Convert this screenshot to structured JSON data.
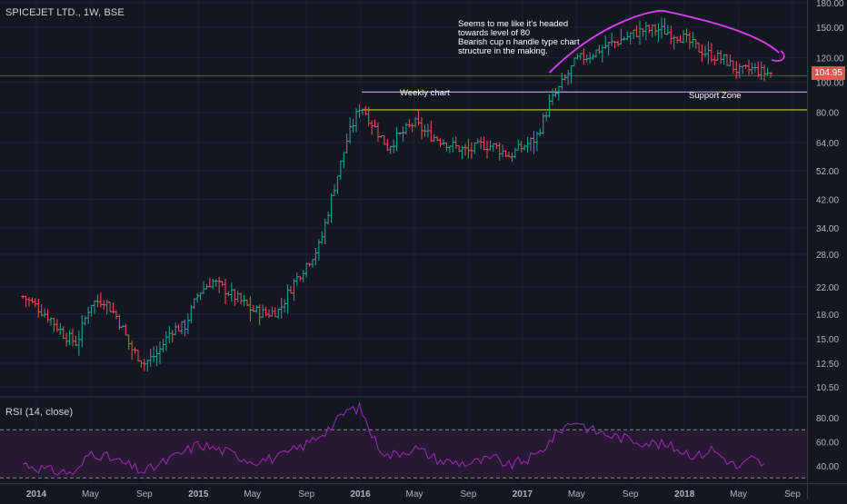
{
  "header": {
    "symbol_title": "SPICEJET LTD., 1W, BSE",
    "rsi_label": "RSI (14, close)"
  },
  "annotations": {
    "cup_note": "Seems to me like it's headed\ntowards level of 80\nBearish cup n handle type chart\nstructure in the making.",
    "weekly_chart": "Weekly chart",
    "support_zone": "Support Zone"
  },
  "last_price": "104.95",
  "colors": {
    "background": "#131722",
    "up": "#26a69a",
    "down": "#ef5350",
    "rsi_line": "#9c27b0",
    "rsi_band": "#2a1a33",
    "support_lines": "#c8c83a",
    "cup_curve": "#e040fb",
    "price_line": "#ef5350"
  },
  "chart_data": [
    {
      "type": "ohlc",
      "title": "SPICEJET LTD., 1W, BSE",
      "scale": "log",
      "ylim": [
        9.5,
        180
      ],
      "y_ticks": [
        "180.00",
        "150.00",
        "120.00",
        "100.00",
        "80.00",
        "64.00",
        "52.00",
        "42.00",
        "34.00",
        "28.00",
        "22.00",
        "18.00",
        "15.00",
        "12.50",
        "10.50"
      ],
      "x_ticks": [
        "2014",
        "May",
        "Sep",
        "2015",
        "May",
        "Sep",
        "2016",
        "May",
        "Sep",
        "2017",
        "May",
        "Sep",
        "2018",
        "May",
        "Sep"
      ],
      "x_range": [
        "2013-11",
        "2018-09"
      ],
      "price_path": [
        [
          "2013-12",
          20.5
        ],
        [
          "2014-01",
          19.0
        ],
        [
          "2014-02",
          17.5
        ],
        [
          "2014-03",
          15.5
        ],
        [
          "2014-04",
          14.5
        ],
        [
          "2014-05",
          19.5
        ],
        [
          "2014-06",
          20.0
        ],
        [
          "2014-07",
          17.5
        ],
        [
          "2014-08",
          14.0
        ],
        [
          "2014-09",
          12.5
        ],
        [
          "2014-10",
          13.5
        ],
        [
          "2014-11",
          16.0
        ],
        [
          "2014-12",
          16.5
        ],
        [
          "2015-01",
          21.0
        ],
        [
          "2015-02",
          23.0
        ],
        [
          "2015-03",
          21.5
        ],
        [
          "2015-04",
          20.0
        ],
        [
          "2015-05",
          18.5
        ],
        [
          "2015-06",
          18.0
        ],
        [
          "2015-07",
          18.5
        ],
        [
          "2015-08",
          22.5
        ],
        [
          "2015-09",
          26.0
        ],
        [
          "2015-10",
          30.0
        ],
        [
          "2015-11",
          45.0
        ],
        [
          "2015-12",
          65.0
        ],
        [
          "2016-01",
          85.0
        ],
        [
          "2016-02",
          72.0
        ],
        [
          "2016-03",
          62.0
        ],
        [
          "2016-04",
          68.0
        ],
        [
          "2016-05",
          74.0
        ],
        [
          "2016-06",
          68.0
        ],
        [
          "2016-07",
          65.0
        ],
        [
          "2016-08",
          62.0
        ],
        [
          "2016-09",
          60.0
        ],
        [
          "2016-10",
          63.0
        ],
        [
          "2016-11",
          62.0
        ],
        [
          "2016-12",
          58.0
        ],
        [
          "2017-01",
          62.0
        ],
        [
          "2017-02",
          66.0
        ],
        [
          "2017-03",
          85.0
        ],
        [
          "2017-04",
          100.0
        ],
        [
          "2017-05",
          118.0
        ],
        [
          "2017-06",
          122.0
        ],
        [
          "2017-07",
          130.0
        ],
        [
          "2017-08",
          135.0
        ],
        [
          "2017-09",
          142.0
        ],
        [
          "2017-10",
          147.0
        ],
        [
          "2017-11",
          148.0
        ],
        [
          "2017-12",
          144.0
        ],
        [
          "2018-01",
          138.0
        ],
        [
          "2018-02",
          128.0
        ],
        [
          "2018-03",
          122.0
        ],
        [
          "2018-04",
          118.0
        ],
        [
          "2018-05",
          108.0
        ],
        [
          "2018-06",
          110.0
        ],
        [
          "2018-07",
          107.0
        ]
      ],
      "last_price": 104.95,
      "support_zone": [
        81.5,
        93.0
      ],
      "annotations": [
        "Weekly chart",
        "Support Zone",
        "Seems to me like it's headed towards level of 80 Bearish cup n handle type chart structure in the making."
      ]
    },
    {
      "type": "line",
      "title": "RSI (14, close)",
      "ylim": [
        28,
        92
      ],
      "y_ticks": [
        "80.00",
        "60.00",
        "40.00"
      ],
      "bands": [
        30,
        70
      ],
      "rsi_path": [
        [
          "2013-12",
          42
        ],
        [
          "2014-02",
          36
        ],
        [
          "2014-04",
          34
        ],
        [
          "2014-05",
          52
        ],
        [
          "2014-07",
          44
        ],
        [
          "2014-09",
          35
        ],
        [
          "2014-11",
          46
        ],
        [
          "2015-01",
          58
        ],
        [
          "2015-03",
          52
        ],
        [
          "2015-05",
          44
        ],
        [
          "2015-07",
          47
        ],
        [
          "2015-09",
          58
        ],
        [
          "2015-11",
          74
        ],
        [
          "2015-12",
          86
        ],
        [
          "2016-01",
          88
        ],
        [
          "2016-02",
          62
        ],
        [
          "2016-03",
          48
        ],
        [
          "2016-05",
          55
        ],
        [
          "2016-07",
          44
        ],
        [
          "2016-09",
          42
        ],
        [
          "2016-11",
          46
        ],
        [
          "2016-12",
          40
        ],
        [
          "2017-02",
          48
        ],
        [
          "2017-04",
          72
        ],
        [
          "2017-05",
          78
        ],
        [
          "2017-06",
          70
        ],
        [
          "2017-08",
          64
        ],
        [
          "2017-10",
          60
        ],
        [
          "2017-12",
          56
        ],
        [
          "2018-02",
          48
        ],
        [
          "2018-03",
          54
        ],
        [
          "2018-05",
          38
        ],
        [
          "2018-06",
          46
        ],
        [
          "2018-07",
          40
        ]
      ]
    }
  ]
}
